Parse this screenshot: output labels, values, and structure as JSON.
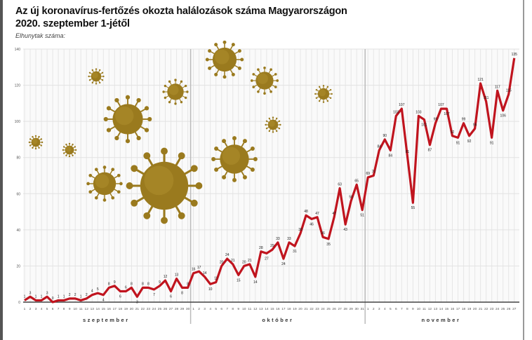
{
  "title_line1": "Az új koronavírus-fertőzés okozta halálozások száma Magyarországon",
  "title_line2": "2020. szeptember 1-jétől",
  "chart_data": {
    "type": "line",
    "title": "Az új koronavírus-fertőzés okozta halálozások száma Magyarországon 2020. szeptember 1-jétől",
    "ylabel": "Elhunytak száma:",
    "ylim": [
      0,
      140
    ],
    "yticks": [
      0,
      20,
      40,
      60,
      80,
      100,
      120,
      140
    ],
    "grid": true,
    "line_color": "#c0141e",
    "decoration_color": "#9a7a1e",
    "months": [
      {
        "name": "szeptember",
        "days": [
          1,
          2,
          3,
          4,
          5,
          6,
          7,
          8,
          9,
          10,
          11,
          12,
          13,
          14,
          15,
          16,
          17,
          18,
          19,
          20,
          21,
          22,
          23,
          24,
          25,
          26,
          27,
          28,
          29,
          30
        ],
        "values": [
          1,
          3,
          1,
          1,
          3,
          0,
          1,
          1,
          2,
          2,
          1,
          2,
          4,
          5,
          4,
          8,
          9,
          6,
          6,
          8,
          3,
          8,
          8,
          7,
          9,
          12,
          6,
          13,
          8,
          8
        ]
      },
      {
        "name": "október",
        "days": [
          1,
          2,
          3,
          4,
          5,
          6,
          7,
          8,
          9,
          10,
          11,
          12,
          13,
          14,
          15,
          16,
          17,
          18,
          19,
          20,
          21,
          22,
          23,
          24,
          25,
          26,
          27,
          28,
          29,
          30,
          31
        ],
        "values": [
          16,
          17,
          14,
          10,
          11,
          20,
          24,
          21,
          15,
          20,
          21,
          14,
          28,
          27,
          29,
          33,
          24,
          33,
          31,
          38,
          48,
          46,
          47,
          36,
          35,
          47,
          63,
          43,
          56,
          65,
          51
        ]
      },
      {
        "name": "november",
        "days": [
          1,
          2,
          3,
          4,
          5,
          6,
          7,
          8,
          9,
          10,
          11,
          12,
          13,
          14,
          15,
          16,
          17,
          18,
          19,
          20,
          21,
          22,
          23,
          24,
          25,
          26,
          27
        ],
        "values": [
          69,
          70,
          84,
          90,
          84,
          103,
          107,
          81,
          55,
          103,
          101,
          87,
          99,
          107,
          107,
          92,
          91,
          99,
          92,
          96,
          121,
          111,
          91,
          117,
          106,
          115,
          135
        ]
      }
    ]
  }
}
